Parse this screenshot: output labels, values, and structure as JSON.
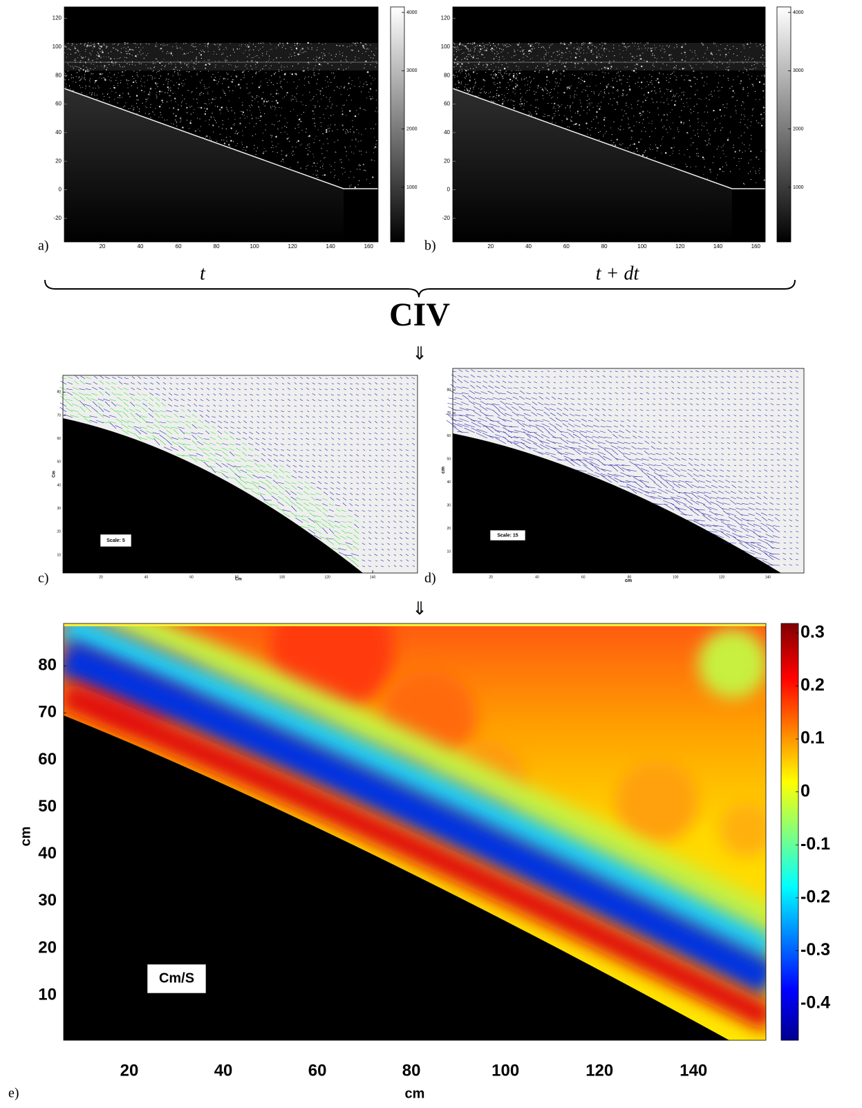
{
  "panels": {
    "a": {
      "label": "a)",
      "xlim": [
        0,
        165
      ],
      "ylim": [
        -36.5,
        128
      ],
      "xticks": [
        20,
        40,
        60,
        80,
        100,
        120,
        140,
        160
      ],
      "yticks": [
        -20,
        0,
        20,
        40,
        60,
        80,
        100,
        120
      ],
      "colorbar": {
        "lim": [
          63,
          4095
        ],
        "ticks": [
          1000,
          2000,
          3000,
          4000
        ]
      }
    },
    "b": {
      "label": "b)",
      "xlim": [
        0,
        165
      ],
      "ylim": [
        -36.5,
        128
      ],
      "xticks": [
        20,
        40,
        60,
        80,
        100,
        120,
        140,
        160
      ],
      "yticks": [
        -20,
        0,
        20,
        40,
        60,
        80,
        100,
        120
      ],
      "colorbar": {
        "lim": [
          63,
          4095
        ],
        "ticks": [
          1000,
          2000,
          3000,
          4000
        ]
      }
    },
    "c": {
      "label": "c)",
      "xlim": [
        3.2,
        159.8
      ],
      "ylim": [
        2.3,
        87.2
      ],
      "xticks": [
        20,
        40,
        60,
        80,
        100,
        120,
        140
      ],
      "yticks": [
        10,
        20,
        30,
        40,
        50,
        60,
        70,
        80
      ],
      "xlabel": "Cm",
      "ylabel": "Cm",
      "scale": "Scale: 5"
    },
    "d": {
      "label": "d)",
      "xlim": [
        3.5,
        155.6
      ],
      "ylim": [
        0.7,
        89.3
      ],
      "xticks": [
        20,
        40,
        60,
        80,
        100,
        120,
        140
      ],
      "yticks": [
        10,
        20,
        30,
        40,
        50,
        60,
        70,
        80
      ],
      "xlabel": "cm",
      "ylabel": "cm",
      "scale": "Scale: 15"
    },
    "e": {
      "label": "e)",
      "xlim": [
        6.03,
        155.4
      ],
      "ylim": [
        0.46,
        89
      ],
      "xticks": [
        20,
        40,
        60,
        80,
        100,
        120,
        140
      ],
      "yticks": [
        10,
        20,
        30,
        40,
        50,
        60,
        70,
        80
      ],
      "xlabel": "cm",
      "ylabel": "cm",
      "scale": "Cm/S",
      "colorbar": {
        "lim": [
          -0.469,
          0.318
        ],
        "ticks": [
          -0.4,
          -0.3,
          -0.2,
          -0.1,
          0,
          0.1,
          0.2,
          0.3
        ]
      }
    }
  },
  "times": [
    "t",
    "t + dt"
  ],
  "method": "CIV",
  "arrows": [
    "⇓",
    "⇓"
  ]
}
